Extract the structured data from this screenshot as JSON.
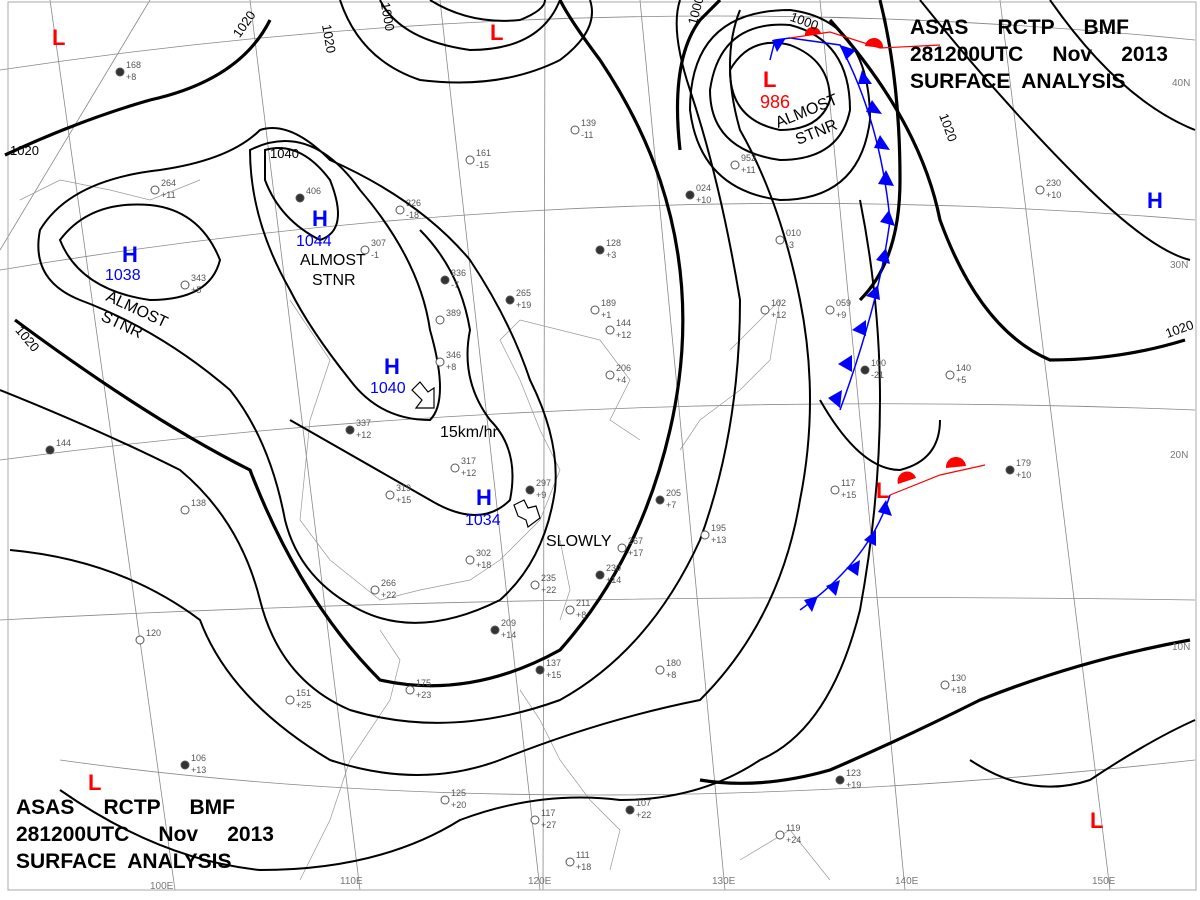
{
  "header": {
    "line1": "ASAS     RCTP     BMF",
    "line2": "281200UTC     Nov     2013",
    "line3": "SURFACE  ANALYSIS"
  },
  "colors": {
    "high": "#0000ff",
    "low": "#ff0000",
    "isobar": "#000000",
    "cold_front": "#0000ff",
    "warm_front": "#ff0000"
  },
  "longitude_labels": [
    "100E",
    "110E",
    "120E",
    "130E",
    "140E",
    "150E"
  ],
  "latitude_labels": [
    "40N",
    "30N",
    "20N",
    "10N"
  ],
  "isobar_labels": [
    "1020",
    "1020",
    "1020",
    "1000",
    "1000",
    "1000",
    "1020",
    "1020",
    "1020",
    "1040"
  ],
  "pressure_centers": [
    {
      "type": "L",
      "value": ""
    },
    {
      "type": "L",
      "value": ""
    },
    {
      "type": "L",
      "value": "986"
    },
    {
      "type": "H",
      "value": "1044"
    },
    {
      "type": "H",
      "value": "1038"
    },
    {
      "type": "H",
      "value": "1040"
    },
    {
      "type": "H",
      "value": "1034"
    },
    {
      "type": "H",
      "value": ""
    },
    {
      "type": "L",
      "value": ""
    },
    {
      "type": "L",
      "value": ""
    },
    {
      "type": "L",
      "value": ""
    }
  ],
  "annotations": {
    "almost_stnr_1": [
      "ALMOST",
      "STNR"
    ],
    "almost_stnr_2": [
      "ALMOST",
      "STNR"
    ],
    "almost_stnr_3": [
      "ALMOST",
      "STNR"
    ],
    "speed": "15km/hr",
    "slowly": "SLOWLY"
  },
  "stations": [
    {
      "t": "168",
      "p": "+8"
    },
    {
      "t": "264",
      "p": "+11"
    },
    {
      "t": "343",
      "p": "+5"
    },
    {
      "t": "406",
      "p": ""
    },
    {
      "t": "326",
      "p": "-18"
    },
    {
      "t": "307",
      "p": "-1"
    },
    {
      "t": "336",
      "p": "-7"
    },
    {
      "t": "389",
      "p": ""
    },
    {
      "t": "346",
      "p": "+8"
    },
    {
      "t": "337",
      "p": "+12"
    },
    {
      "t": "317",
      "p": "+12"
    },
    {
      "t": "319",
      "p": "+15"
    },
    {
      "t": "297",
      "p": "+9"
    },
    {
      "t": "302",
      "p": "+18"
    },
    {
      "t": "267",
      "p": "+17"
    },
    {
      "t": "230",
      "p": "+14"
    },
    {
      "t": "266",
      "p": "+22"
    },
    {
      "t": "235",
      "p": "+22"
    },
    {
      "t": "209",
      "p": "+14"
    },
    {
      "t": "211",
      "p": "+8"
    },
    {
      "t": "189",
      "p": "+1"
    },
    {
      "t": "265",
      "p": "+19"
    },
    {
      "t": "161",
      "p": "-15"
    },
    {
      "t": "139",
      "p": "-11"
    },
    {
      "t": "128",
      "p": "+3"
    },
    {
      "t": "144",
      "p": "+12"
    },
    {
      "t": "206",
      "p": "+4"
    },
    {
      "t": "205",
      "p": "+7"
    },
    {
      "t": "195",
      "p": "+13"
    },
    {
      "t": "180",
      "p": "+8"
    },
    {
      "t": "137",
      "p": "+15"
    },
    {
      "t": "151",
      "p": "+25"
    },
    {
      "t": "175",
      "p": "+23"
    },
    {
      "t": "106",
      "p": "+13"
    },
    {
      "t": "125",
      "p": "+20"
    },
    {
      "t": "117",
      "p": "+27"
    },
    {
      "t": "107",
      "p": "+22"
    },
    {
      "t": "111",
      "p": "+18"
    },
    {
      "t": "119",
      "p": "+24"
    },
    {
      "t": "123",
      "p": "+19"
    },
    {
      "t": "130",
      "p": "+18"
    },
    {
      "t": "102",
      "p": "+12"
    },
    {
      "t": "179",
      "p": "+10"
    },
    {
      "t": "140",
      "p": "+5"
    },
    {
      "t": "117",
      "p": "+15"
    },
    {
      "t": "100",
      "p": "-21"
    },
    {
      "t": "059",
      "p": "+9"
    },
    {
      "t": "952",
      "p": "+11"
    },
    {
      "t": "024",
      "p": "+10"
    },
    {
      "t": "010",
      "p": "-3"
    },
    {
      "t": "230",
      "p": "+10"
    },
    {
      "t": "144",
      "p": ""
    },
    {
      "t": "138",
      "p": ""
    },
    {
      "t": "120",
      "p": ""
    }
  ]
}
